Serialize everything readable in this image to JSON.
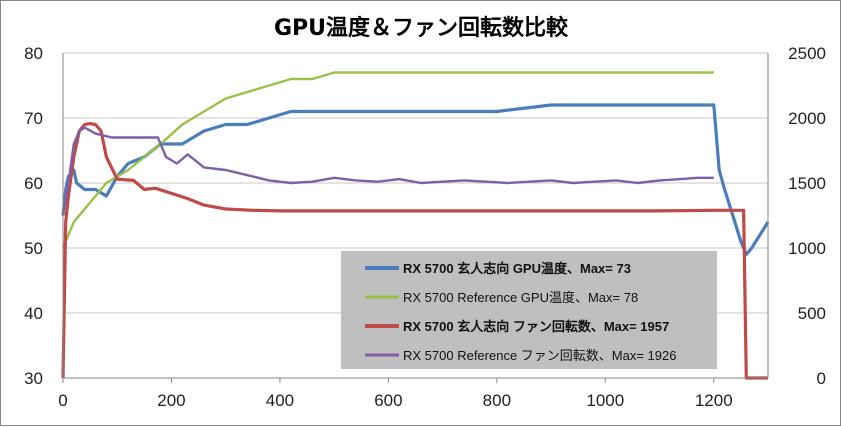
{
  "colors": {
    "rx5700_temp": "#4a7ebb",
    "ref_temp": "#98c148",
    "rx5700_fan": "#be4b48",
    "ref_fan": "#7f5fa5",
    "gridline": "#c7c7c7",
    "legend_bg": "#bfbfbf"
  },
  "chart_data": {
    "type": "line",
    "title": "GPU温度＆ファン回転数比較",
    "xlim": [
      0,
      1300
    ],
    "x_ticks": [
      "0",
      "200",
      "400",
      "600",
      "800",
      "1000",
      "1200"
    ],
    "ylim_left": [
      30,
      80
    ],
    "y_ticks_left": [
      "30",
      "40",
      "50",
      "60",
      "70",
      "80"
    ],
    "ylim_right": [
      0,
      2500
    ],
    "y_ticks_right": [
      "0",
      "500",
      "1000",
      "1500",
      "2000",
      "2500"
    ],
    "grid": true,
    "legend_position": "bottom-right",
    "series": [
      {
        "name": "RX 5700 玄人志向 GPU温度、Max= 73",
        "axis": "left",
        "color_key": "rx5700_temp",
        "bold": true,
        "points": [
          [
            0,
            55
          ],
          [
            5,
            59
          ],
          [
            10,
            61
          ],
          [
            20,
            62
          ],
          [
            25,
            60
          ],
          [
            40,
            59
          ],
          [
            60,
            59
          ],
          [
            80,
            58
          ],
          [
            100,
            61
          ],
          [
            120,
            63
          ],
          [
            150,
            64
          ],
          [
            180,
            66
          ],
          [
            220,
            66
          ],
          [
            260,
            68
          ],
          [
            300,
            69
          ],
          [
            340,
            69
          ],
          [
            380,
            70
          ],
          [
            420,
            71
          ],
          [
            460,
            71
          ],
          [
            500,
            71
          ],
          [
            600,
            71
          ],
          [
            700,
            71
          ],
          [
            800,
            71
          ],
          [
            900,
            72
          ],
          [
            1000,
            72
          ],
          [
            1100,
            72
          ],
          [
            1200,
            72
          ],
          [
            1210,
            62
          ],
          [
            1220,
            59
          ],
          [
            1235,
            55
          ],
          [
            1250,
            51
          ],
          [
            1260,
            49
          ],
          [
            1270,
            50
          ],
          [
            1285,
            52
          ],
          [
            1300,
            54
          ]
        ]
      },
      {
        "name": "RX 5700 Reference GPU温度、Max= 78",
        "axis": "left",
        "color_key": "ref_temp",
        "bold": false,
        "points": [
          [
            0,
            50
          ],
          [
            10,
            52
          ],
          [
            20,
            54
          ],
          [
            40,
            56
          ],
          [
            60,
            58
          ],
          [
            80,
            60
          ],
          [
            100,
            61
          ],
          [
            120,
            62
          ],
          [
            150,
            64
          ],
          [
            180,
            66
          ],
          [
            220,
            69
          ],
          [
            260,
            71
          ],
          [
            300,
            73
          ],
          [
            340,
            74
          ],
          [
            380,
            75
          ],
          [
            420,
            76
          ],
          [
            460,
            76
          ],
          [
            500,
            77
          ],
          [
            550,
            77
          ],
          [
            600,
            77
          ],
          [
            700,
            77
          ],
          [
            800,
            77
          ],
          [
            900,
            77
          ],
          [
            1000,
            77
          ],
          [
            1100,
            77
          ],
          [
            1200,
            77
          ]
        ]
      },
      {
        "name": "RX 5700 玄人志向 ファン回転数、Max= 1957",
        "axis": "right",
        "color_key": "rx5700_fan",
        "bold": true,
        "points": [
          [
            0,
            0
          ],
          [
            5,
            1200
          ],
          [
            10,
            1400
          ],
          [
            20,
            1700
          ],
          [
            30,
            1900
          ],
          [
            40,
            1950
          ],
          [
            50,
            1957
          ],
          [
            60,
            1950
          ],
          [
            70,
            1900
          ],
          [
            80,
            1700
          ],
          [
            100,
            1530
          ],
          [
            130,
            1520
          ],
          [
            150,
            1450
          ],
          [
            170,
            1460
          ],
          [
            200,
            1420
          ],
          [
            230,
            1380
          ],
          [
            260,
            1330
          ],
          [
            300,
            1300
          ],
          [
            350,
            1290
          ],
          [
            400,
            1285
          ],
          [
            500,
            1285
          ],
          [
            600,
            1285
          ],
          [
            700,
            1285
          ],
          [
            800,
            1285
          ],
          [
            900,
            1285
          ],
          [
            1000,
            1285
          ],
          [
            1100,
            1285
          ],
          [
            1200,
            1290
          ],
          [
            1255,
            1290
          ],
          [
            1260,
            0
          ],
          [
            1300,
            0
          ]
        ]
      },
      {
        "name": "RX 5700 Reference ファン回転数、Max= 1926",
        "axis": "right",
        "color_key": "ref_fan",
        "bold": false,
        "points": [
          [
            0,
            1250
          ],
          [
            10,
            1500
          ],
          [
            20,
            1800
          ],
          [
            30,
            1900
          ],
          [
            40,
            1926
          ],
          [
            60,
            1880
          ],
          [
            90,
            1850
          ],
          [
            120,
            1850
          ],
          [
            150,
            1850
          ],
          [
            175,
            1850
          ],
          [
            190,
            1700
          ],
          [
            210,
            1650
          ],
          [
            230,
            1720
          ],
          [
            260,
            1620
          ],
          [
            300,
            1600
          ],
          [
            340,
            1560
          ],
          [
            380,
            1520
          ],
          [
            420,
            1500
          ],
          [
            460,
            1510
          ],
          [
            500,
            1540
          ],
          [
            540,
            1520
          ],
          [
            580,
            1510
          ],
          [
            620,
            1530
          ],
          [
            660,
            1500
          ],
          [
            700,
            1510
          ],
          [
            740,
            1520
          ],
          [
            780,
            1510
          ],
          [
            820,
            1500
          ],
          [
            860,
            1510
          ],
          [
            900,
            1520
          ],
          [
            940,
            1500
          ],
          [
            980,
            1510
          ],
          [
            1020,
            1520
          ],
          [
            1060,
            1500
          ],
          [
            1100,
            1520
          ],
          [
            1140,
            1530
          ],
          [
            1170,
            1540
          ],
          [
            1200,
            1540
          ]
        ]
      }
    ]
  }
}
